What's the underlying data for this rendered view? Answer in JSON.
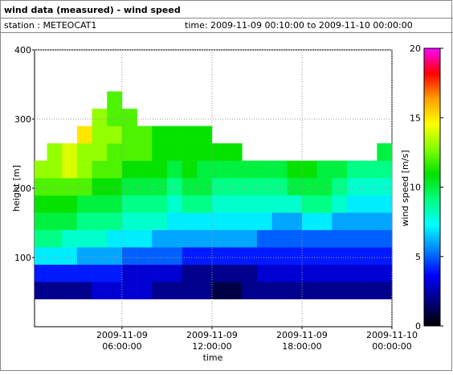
{
  "chart_data": {
    "type": "heatmap",
    "title": "wind data (measured) - wind speed",
    "station": "station : METEOCAT1",
    "time_range": "time: 2009-11-09 00:10:00 to 2009-11-10 00:00:00",
    "x_label": "time",
    "y_label": "height [m]",
    "colorbar_label": "wind speed [m/s]",
    "xlim": [
      "2009-11-09 00:10:00",
      "2009-11-10 00:00:00"
    ],
    "xticks": [
      "2009-11-09 06:00:00",
      "2009-11-09 12:00:00",
      "2009-11-09 18:00:00",
      "2009-11-10 00:00:00"
    ],
    "ylim": [
      0,
      400
    ],
    "yticks": [
      100,
      200,
      300,
      400
    ],
    "zlim": [
      0,
      20
    ],
    "zticks": [
      0,
      5,
      10,
      15,
      20
    ],
    "colormap": [
      "#000000",
      "#00007f",
      "#0000ff",
      "#0080ff",
      "#00ffff",
      "#00ff80",
      "#00e000",
      "#80ff00",
      "#ffff00",
      "#ffa000",
      "#ff0000",
      "#ff00ff"
    ],
    "grid": true,
    "x_bins": [
      "2009-11-09 00:10:00",
      "2009-11-09 01:00:00",
      "2009-11-09 02:00:00",
      "2009-11-09 03:00:00",
      "2009-11-09 04:00:00",
      "2009-11-09 05:00:00",
      "2009-11-09 06:00:00",
      "2009-11-09 07:00:00",
      "2009-11-09 08:00:00",
      "2009-11-09 09:00:00",
      "2009-11-09 10:00:00",
      "2009-11-09 11:00:00",
      "2009-11-09 12:00:00",
      "2009-11-09 13:00:00",
      "2009-11-09 14:00:00",
      "2009-11-09 15:00:00",
      "2009-11-09 16:00:00",
      "2009-11-09 17:00:00",
      "2009-11-09 18:00:00",
      "2009-11-09 19:00:00",
      "2009-11-09 20:00:00",
      "2009-11-09 21:00:00",
      "2009-11-09 22:00:00",
      "2009-11-09 23:00:00",
      "2009-11-10 00:00:00"
    ],
    "y_bins": [
      40,
      65,
      90,
      115,
      140,
      165,
      190,
      215,
      240,
      265,
      290,
      315,
      340
    ],
    "values": [
      [
        2,
        2,
        2,
        2,
        3,
        3,
        3,
        3,
        2,
        2,
        2,
        2,
        1,
        1,
        2,
        2,
        2,
        2,
        2,
        2,
        2,
        2,
        2,
        2
      ],
      [
        4,
        4,
        4,
        4,
        4,
        4,
        3,
        3,
        3,
        3,
        2,
        2,
        2,
        2,
        2,
        3,
        3,
        3,
        3,
        3,
        3,
        3,
        3,
        3
      ],
      [
        7,
        7,
        7,
        6,
        6,
        6,
        5,
        5,
        5,
        5,
        4,
        4,
        4,
        4,
        4,
        4,
        4,
        4,
        4,
        4,
        4,
        4,
        4,
        4
      ],
      [
        9,
        9,
        8,
        8,
        8,
        7,
        7,
        7,
        6,
        6,
        6,
        6,
        6,
        6,
        6,
        5,
        5,
        5,
        5,
        5,
        5,
        5,
        5,
        5
      ],
      [
        10,
        10,
        10,
        9,
        9,
        9,
        8,
        8,
        8,
        7,
        7,
        7,
        7,
        7,
        7,
        7,
        6,
        6,
        7,
        7,
        6,
        6,
        6,
        6
      ],
      [
        11,
        11,
        11,
        10,
        10,
        10,
        9,
        9,
        9,
        8,
        9,
        9,
        8,
        8,
        8,
        8,
        8,
        8,
        9,
        9,
        8,
        7,
        7,
        7
      ],
      [
        12,
        12,
        12,
        12,
        11,
        11,
        10,
        10,
        10,
        9,
        10,
        10,
        9,
        9,
        9,
        9,
        9,
        10,
        10,
        10,
        9,
        8,
        8,
        8
      ],
      [
        13,
        13,
        14,
        13,
        12,
        12,
        11,
        11,
        11,
        10,
        11,
        10,
        10,
        10,
        10,
        10,
        10,
        11,
        11,
        10,
        10,
        9,
        9,
        9
      ],
      [
        null,
        13,
        14,
        13,
        13,
        12,
        12,
        12,
        11,
        11,
        11,
        11,
        11,
        11,
        null,
        null,
        null,
        null,
        null,
        null,
        null,
        null,
        null,
        10
      ],
      [
        null,
        null,
        null,
        15,
        13,
        13,
        12,
        12,
        11,
        11,
        11,
        11,
        null,
        null,
        null,
        null,
        null,
        null,
        null,
        null,
        null,
        null,
        null,
        null
      ],
      [
        null,
        null,
        null,
        null,
        13,
        12,
        12,
        null,
        null,
        null,
        null,
        null,
        null,
        null,
        null,
        null,
        null,
        null,
        null,
        null,
        null,
        null,
        null,
        null
      ],
      [
        null,
        null,
        null,
        null,
        null,
        12,
        null,
        null,
        null,
        null,
        null,
        null,
        null,
        null,
        null,
        null,
        null,
        null,
        null,
        null,
        null,
        null,
        null,
        null
      ]
    ]
  }
}
